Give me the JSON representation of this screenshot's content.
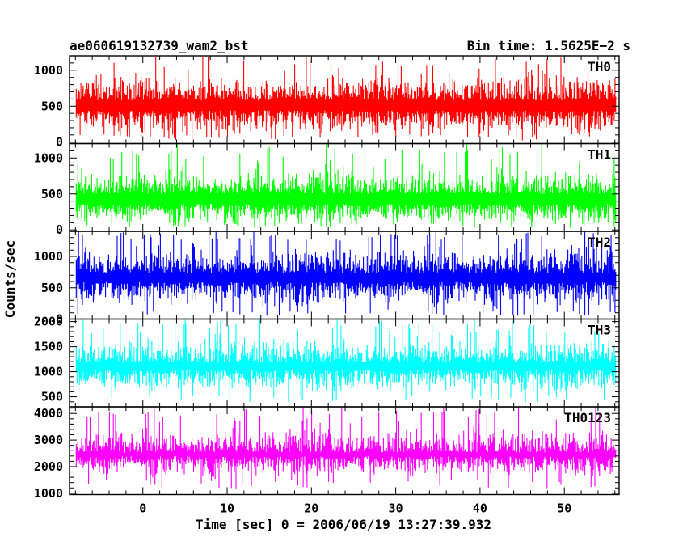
{
  "chart_data": {
    "type": "line",
    "title": "ae060619132739_wam2_bst",
    "subtitle": "Bin time: 1.5625E−2 s",
    "ylabel": "Counts/sec",
    "xlabel": "Time [sec] 0 = 2006/06/19 13:27:39.932",
    "xlim": [
      -8.7,
      56.5
    ],
    "x_data_range": [
      -7.9,
      56.1
    ],
    "x_ticks": [
      0,
      10,
      20,
      30,
      40,
      50
    ],
    "x_tick_labels": [
      "0",
      "10",
      "20",
      "30",
      "40",
      "50"
    ],
    "x_minor_step": 2,
    "bin_time_s": 0.015625,
    "grid": false,
    "legend": "none",
    "panels": [
      {
        "name": "TH0",
        "color": "#ff0000",
        "ylim": [
          -20,
          1200
        ],
        "y_ticks": [
          0,
          500,
          1000
        ],
        "y_tick_labels": [
          "0",
          "500",
          "1000"
        ],
        "y_minor_step": 100,
        "mean": 500,
        "spread": 160,
        "lower_typical": 120,
        "upper_typical": 960,
        "peak": 1200
      },
      {
        "name": "TH1",
        "color": "#00ff00",
        "ylim": [
          -20,
          1200
        ],
        "y_ticks": [
          0,
          500,
          1000
        ],
        "y_tick_labels": [
          "0",
          "500",
          "1000"
        ],
        "y_minor_step": 100,
        "mean": 420,
        "spread": 140,
        "lower_typical": 100,
        "upper_typical": 850,
        "peak": 1200
      },
      {
        "name": "TH2",
        "color": "#0000ff",
        "ylim": [
          0,
          1400
        ],
        "y_ticks": [
          0,
          500,
          1000
        ],
        "y_tick_labels": [
          "0",
          "500",
          "1000"
        ],
        "y_minor_step": 100,
        "mean": 650,
        "spread": 190,
        "lower_typical": 130,
        "upper_typical": 1250,
        "peak": 1400
      },
      {
        "name": "TH3",
        "color": "#00ffff",
        "ylim": [
          300,
          2050
        ],
        "y_ticks": [
          500,
          1000,
          1500,
          2000
        ],
        "y_tick_labels": [
          "500",
          "1000",
          "1500",
          "2000"
        ],
        "y_minor_step": 100,
        "mean": 1100,
        "spread": 220,
        "lower_typical": 520,
        "upper_typical": 1750,
        "peak": 2050
      },
      {
        "name": "TH0123",
        "color": "#ff00ff",
        "ylim": [
          950,
          4250
        ],
        "y_ticks": [
          1000,
          2000,
          3000,
          4000
        ],
        "y_tick_labels": [
          "1000",
          "2000",
          "3000",
          "4000"
        ],
        "y_minor_step": 200,
        "mean": 2450,
        "spread": 380,
        "lower_typical": 1500,
        "upper_typical": 3600,
        "peak": 4250
      }
    ]
  }
}
